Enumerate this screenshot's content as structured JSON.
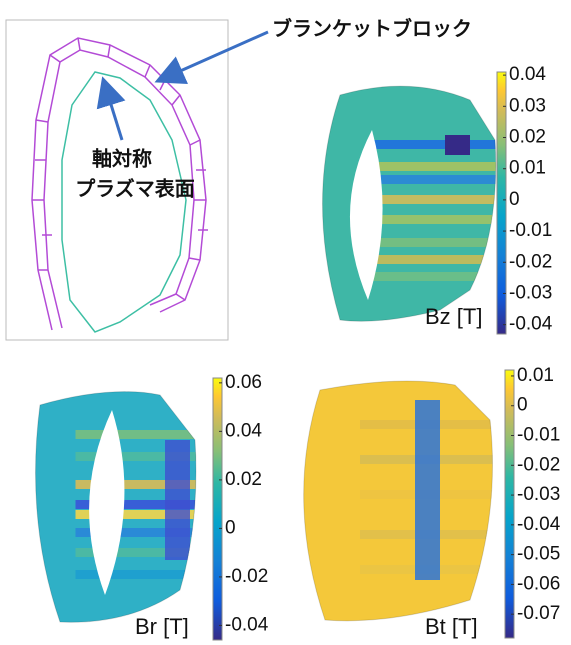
{
  "annotations": {
    "blanket": "ブランケットブロック",
    "plasma": [
      "軸対称",
      "プラズマ表面"
    ]
  },
  "panels": [
    {
      "label": "Bz [T]",
      "colorbar": {
        "lim": [
          -0.043,
          0.041
        ],
        "ticks": [
          0.04,
          0.03,
          0.02,
          0.01,
          0,
          -0.01,
          -0.02,
          -0.03,
          -0.04
        ]
      }
    },
    {
      "label": "Br [T]",
      "colorbar": {
        "lim": [
          -0.046,
          0.062
        ],
        "ticks": [
          0.06,
          0.04,
          0.02,
          0,
          -0.02,
          -0.04
        ]
      }
    },
    {
      "label": "Bt [T]",
      "colorbar": {
        "lim": [
          -0.078,
          0.012
        ],
        "ticks": [
          0.01,
          0,
          -0.01,
          -0.02,
          -0.03,
          -0.04,
          -0.05,
          -0.06,
          -0.07
        ]
      }
    }
  ]
}
